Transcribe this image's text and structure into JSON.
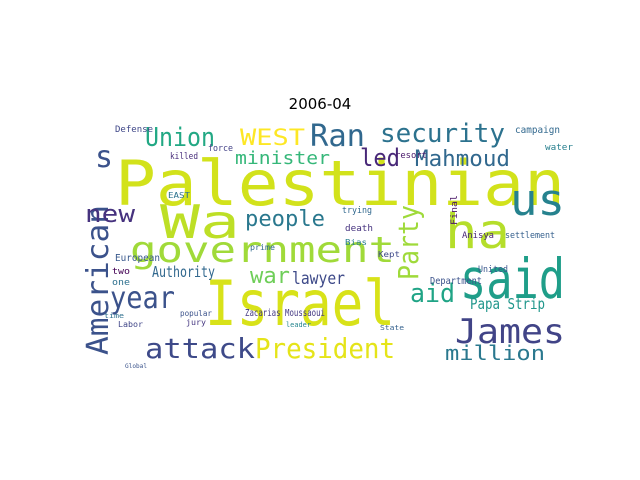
{
  "title": "2006-04",
  "words": [
    "Palestinian",
    "Israel",
    "said",
    "ha",
    "us",
    "Wa",
    "government",
    "attack",
    "President",
    "James",
    "million",
    "American",
    "year",
    "Union",
    "WEST",
    "Ran",
    "security",
    "s",
    "minister",
    "led",
    "Mahmoud",
    "new",
    "people",
    "Party",
    "Authority",
    "war",
    "lawyer",
    "aid",
    "Papa Strip",
    "Zacarias Moussaoui",
    "Department",
    "settlement",
    "Anisya",
    "trying",
    "death",
    "Bias",
    "Kept",
    "European",
    "two",
    "one",
    "killed",
    "Defense",
    "force",
    "EAST",
    "prime",
    "resort",
    "United",
    "campaign",
    "water",
    "popular",
    "jury",
    "Labor",
    "time",
    "leader",
    "State",
    "Final",
    "Global"
  ]
}
